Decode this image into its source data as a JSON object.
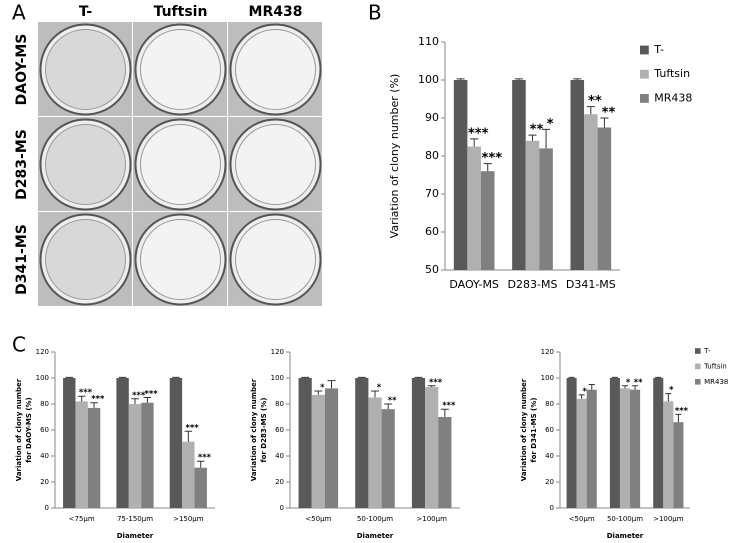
{
  "panels": {
    "a": {
      "label": "A",
      "columns": [
        "T-",
        "Tuftsin",
        "MR438"
      ],
      "rows": [
        "DAOY-MS",
        "D283-MS",
        "D341-MS"
      ]
    },
    "b": {
      "label": "B"
    },
    "c": {
      "label": "C"
    }
  },
  "chart_data": [
    {
      "type": "bar",
      "ylabel": [
        "Variation of clony number (%)"
      ],
      "categories": [
        "DAOY-MS",
        "D283-MS",
        "D341-MS"
      ],
      "ylim": [
        50,
        110
      ],
      "yticks": [
        50,
        60,
        70,
        80,
        90,
        100,
        110
      ],
      "legend": "right",
      "series": [
        {
          "name": "T-",
          "color": "#595959",
          "values": [
            100,
            100,
            100
          ],
          "errors": [
            0.3,
            0.3,
            0.3
          ],
          "annotations": [
            null,
            null,
            null
          ]
        },
        {
          "name": "Tuftsin",
          "color": "#b0b0b0",
          "values": [
            82.5,
            84,
            91
          ],
          "errors": [
            2,
            1.5,
            2
          ],
          "annotations": [
            "***",
            "**",
            "**"
          ]
        },
        {
          "name": "MR438",
          "color": "#808080",
          "values": [
            76,
            82,
            87.5
          ],
          "errors": [
            2,
            5,
            2.5
          ],
          "annotations": [
            "***",
            "*",
            "**"
          ]
        }
      ]
    },
    {
      "type": "bar",
      "ylabel": [
        "Variation of clony number",
        "for DAOY-MS (%)"
      ],
      "xlabel": "Diameter",
      "categories": [
        "<75µm",
        "75-150µm",
        ">150µm"
      ],
      "ylim": [
        0,
        120
      ],
      "yticks": [
        0,
        20,
        40,
        60,
        80,
        100,
        120
      ],
      "series": [
        {
          "name": "T-",
          "color": "#595959",
          "values": [
            100,
            100,
            100
          ],
          "errors": [
            0.5,
            0.5,
            0.5
          ],
          "annotations": [
            null,
            null,
            null
          ]
        },
        {
          "name": "Tuftsin",
          "color": "#b0b0b0",
          "values": [
            82,
            80,
            51
          ],
          "errors": [
            4,
            4,
            8
          ],
          "annotations": [
            "***",
            "***",
            "***"
          ]
        },
        {
          "name": "MR438",
          "color": "#808080",
          "values": [
            77,
            81,
            31
          ],
          "errors": [
            4,
            4,
            5
          ],
          "annotations": [
            "***",
            "***",
            "***"
          ]
        }
      ]
    },
    {
      "type": "bar",
      "ylabel": [
        "Variation of clony number",
        "for D283-MS (%)"
      ],
      "xlabel": "Diameter",
      "categories": [
        "<50µm",
        "50-100µm",
        ">100µm"
      ],
      "ylim": [
        0,
        120
      ],
      "yticks": [
        0,
        20,
        40,
        60,
        80,
        100,
        120
      ],
      "series": [
        {
          "name": "T-",
          "color": "#595959",
          "values": [
            100,
            100,
            100
          ],
          "errors": [
            0.5,
            0.5,
            0.5
          ],
          "annotations": [
            null,
            null,
            null
          ]
        },
        {
          "name": "Tuftsin",
          "color": "#b0b0b0",
          "values": [
            87,
            85,
            93
          ],
          "errors": [
            3,
            5,
            1
          ],
          "annotations": [
            "*",
            "*",
            "***"
          ]
        },
        {
          "name": "MR438",
          "color": "#808080",
          "values": [
            92,
            76,
            70
          ],
          "errors": [
            6,
            4,
            6
          ],
          "annotations": [
            null,
            "**",
            "***"
          ]
        }
      ]
    },
    {
      "type": "bar",
      "ylabel": [
        "Variation of clony number",
        "for D341-MS (%)"
      ],
      "xlabel": "Diameter",
      "categories": [
        "<50µm",
        "50-100µm",
        ">100µm"
      ],
      "ylim": [
        0,
        120
      ],
      "yticks": [
        0,
        20,
        40,
        60,
        80,
        100,
        120
      ],
      "legend": "right",
      "series": [
        {
          "name": "T-",
          "color": "#595959",
          "values": [
            100,
            100,
            100
          ],
          "errors": [
            0.5,
            0.5,
            0.5
          ],
          "annotations": [
            null,
            null,
            null
          ]
        },
        {
          "name": "Tuftsin",
          "color": "#b0b0b0",
          "values": [
            84,
            92,
            82
          ],
          "errors": [
            3,
            2,
            6
          ],
          "annotations": [
            "*",
            "*",
            "*"
          ]
        },
        {
          "name": "MR438",
          "color": "#808080",
          "values": [
            91,
            91,
            66
          ],
          "errors": [
            4,
            3,
            6
          ],
          "annotations": [
            null,
            "**",
            "***"
          ]
        }
      ]
    }
  ]
}
